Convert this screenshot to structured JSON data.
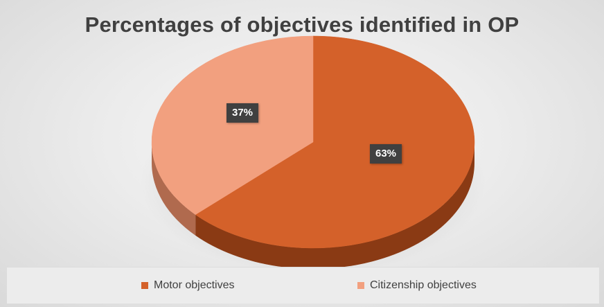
{
  "chart_data": {
    "type": "pie",
    "title": "Percentages of objectives identified in OP",
    "slices": [
      {
        "name": "Motor objectives",
        "value": 63,
        "label": "63%",
        "color": "#D4612A",
        "side_color": "#8A3A14"
      },
      {
        "name": "Citizenship objectives",
        "value": 37,
        "label": "37%",
        "color": "#F2A07F",
        "side_color": "#B06A4E"
      }
    ],
    "style": "3d",
    "legend": {
      "position": "bottom"
    }
  }
}
